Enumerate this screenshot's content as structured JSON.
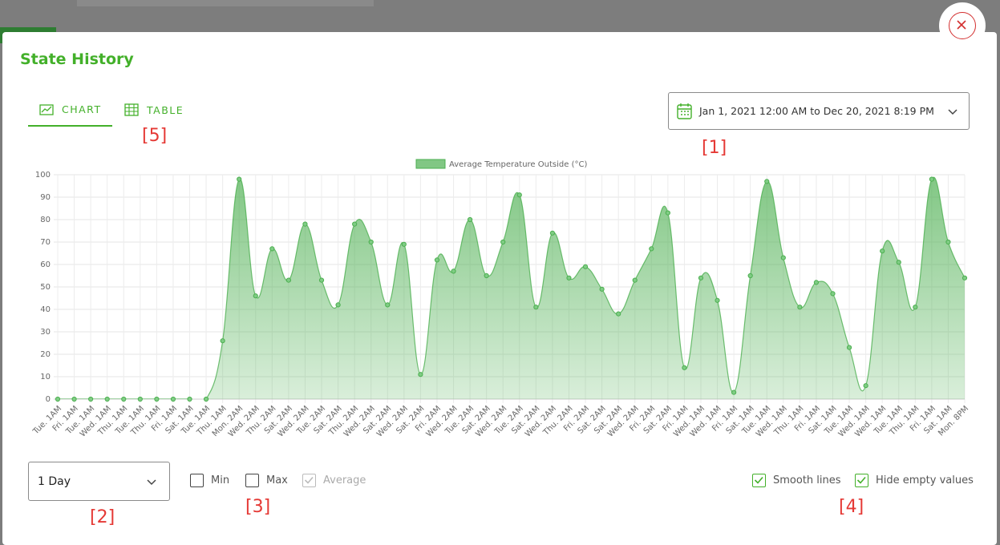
{
  "dialog": {
    "title": "State History",
    "tabs": [
      "CHART",
      "TABLE"
    ],
    "date_range": "Jan 1, 2021 12:00 AM to Dec 20, 2021 8:19 PM",
    "interval": "1 Day",
    "checkboxes": [
      {
        "label": "Min",
        "checked": false
      },
      {
        "label": "Max",
        "checked": false
      },
      {
        "label": "Average",
        "checked": true
      },
      {
        "label": "Smooth lines",
        "checked": true
      },
      {
        "label": "Hide empty values",
        "checked": true
      }
    ],
    "annotations": [
      "[1]",
      "[2]",
      "[3]",
      "[4]",
      "[5]"
    ]
  },
  "chart_data": {
    "type": "area",
    "smooth": true,
    "grid": true,
    "categories": [
      "Tue. 1AM",
      "Fri. 1AM",
      "Tue. 1AM",
      "Wed. 1AM",
      "Thu. 1AM",
      "Tue. 1AM",
      "Thu. 1AM",
      "Fri. 1AM",
      "Sat. 1AM",
      "Tue. 1AM",
      "Thu. 1AM",
      "Mon. 2AM",
      "Wed. 2AM",
      "Thu. 2AM",
      "Sat. 2AM",
      "Wed. 2AM",
      "Tue. 2AM",
      "Sat. 2AM",
      "Thu. 2AM",
      "Wed. 2AM",
      "Sat. 2AM",
      "Wed. 2AM",
      "Sat. 2AM",
      "Fri. 2AM",
      "Wed. 2AM",
      "Tue. 2AM",
      "Sat. 2AM",
      "Wed. 2AM",
      "Tue. 2AM",
      "Sat. 2AM",
      "Wed. 2AM",
      "Thu. 2AM",
      "Fri. 2AM",
      "Sat. 2AM",
      "Sat. 2AM",
      "Wed. 2AM",
      "Fri. 2AM",
      "Sat. 2AM",
      "Fri. 1AM",
      "Wed. 1AM",
      "Wed. 1AM",
      "Fri. 1AM",
      "Sat. 1AM",
      "Tue. 1AM",
      "Wed. 1AM",
      "Thu. 1AM",
      "Fri. 1AM",
      "Sat. 1AM",
      "Tue. 1AM",
      "Wed. 1AM",
      "Wed. 1AM",
      "Tue. 1AM",
      "Thu. 1AM",
      "Fri. 1AM",
      "Sat. 1AM",
      "Mon. 8PM"
    ],
    "series": [
      {
        "name": "Average Temperature Outside (°C)",
        "color": "#4caf50",
        "values": [
          0,
          0,
          0,
          0,
          0,
          0,
          0,
          0,
          0,
          0,
          26,
          98,
          46,
          67,
          53,
          78,
          53,
          42,
          78,
          70,
          42,
          69,
          11,
          62,
          57,
          80,
          55,
          70,
          91,
          41,
          74,
          54,
          59,
          49,
          38,
          53,
          67,
          83,
          14,
          54,
          44,
          3,
          55,
          97,
          63,
          41,
          52,
          47,
          23,
          6,
          66,
          61,
          41,
          98,
          70,
          54
        ]
      }
    ],
    "ylim": [
      0,
      100
    ],
    "yticks": [
      0,
      10,
      20,
      30,
      40,
      50,
      60,
      70,
      80,
      90,
      100
    ]
  }
}
